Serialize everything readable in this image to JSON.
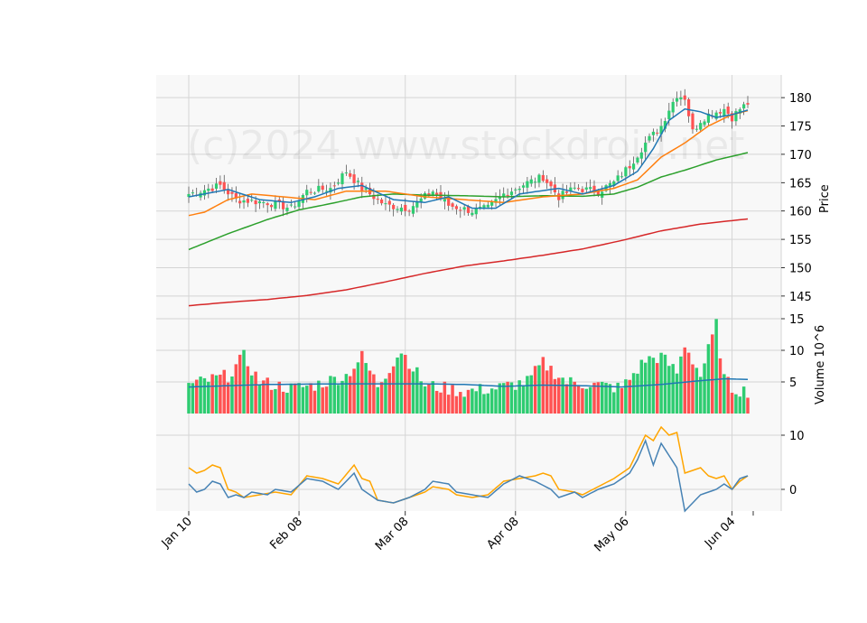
{
  "chart_data": {
    "type": "candlestick",
    "watermark": "(c)2024 www.stockdroid.net",
    "x_ticks": [
      "Jan 10",
      "Feb 08",
      "Mar 08",
      "Apr 08",
      "May 06",
      "Jun 04"
    ],
    "price_panel": {
      "ylabel": "Price",
      "ylim": [
        141,
        184
      ],
      "yticks": [
        145,
        150,
        155,
        160,
        165,
        170,
        175,
        180
      ],
      "candles_anchor_close": [
        [
          0,
          163
        ],
        [
          8,
          164.5
        ],
        [
          12,
          162
        ],
        [
          20,
          161.5
        ],
        [
          26,
          160.5
        ],
        [
          30,
          163.5
        ],
        [
          36,
          164
        ],
        [
          40,
          167
        ],
        [
          44,
          164
        ],
        [
          50,
          161
        ],
        [
          56,
          160.5
        ],
        [
          62,
          163.5
        ],
        [
          66,
          161
        ],
        [
          72,
          160
        ],
        [
          76,
          160.5
        ],
        [
          80,
          163
        ],
        [
          86,
          165
        ],
        [
          90,
          166
        ],
        [
          94,
          162.5
        ],
        [
          98,
          164
        ],
        [
          104,
          163.5
        ],
        [
          108,
          165
        ],
        [
          112,
          168
        ],
        [
          116,
          172
        ],
        [
          120,
          175
        ],
        [
          122,
          178
        ],
        [
          124,
          180.5
        ],
        [
          126,
          180
        ],
        [
          128,
          174
        ],
        [
          130,
          176
        ],
        [
          132,
          177
        ],
        [
          134,
          177.5
        ],
        [
          136,
          178
        ],
        [
          138,
          176.5
        ],
        [
          140,
          178
        ],
        [
          142,
          179
        ]
      ],
      "ma_short_anchors": [
        [
          0,
          162.5
        ],
        [
          10,
          163.8
        ],
        [
          18,
          162
        ],
        [
          26,
          161.5
        ],
        [
          32,
          162.5
        ],
        [
          38,
          164
        ],
        [
          44,
          164.5
        ],
        [
          52,
          162
        ],
        [
          60,
          161.5
        ],
        [
          66,
          162.5
        ],
        [
          72,
          160.5
        ],
        [
          78,
          160.5
        ],
        [
          84,
          163
        ],
        [
          94,
          164
        ],
        [
          100,
          163
        ],
        [
          108,
          164.5
        ],
        [
          114,
          167
        ],
        [
          118,
          171
        ],
        [
          122,
          176
        ],
        [
          126,
          178
        ],
        [
          130,
          177.5
        ],
        [
          134,
          176.5
        ],
        [
          138,
          177
        ],
        [
          142,
          177.8
        ]
      ],
      "ma_mid_anchors": [
        [
          0,
          159.2
        ],
        [
          4,
          159.8
        ],
        [
          10,
          162
        ],
        [
          16,
          163
        ],
        [
          24,
          162.5
        ],
        [
          32,
          162
        ],
        [
          40,
          163.5
        ],
        [
          50,
          163.5
        ],
        [
          60,
          162.5
        ],
        [
          70,
          162
        ],
        [
          80,
          161.5
        ],
        [
          90,
          162.5
        ],
        [
          100,
          163
        ],
        [
          108,
          164
        ],
        [
          114,
          165.5
        ],
        [
          120,
          169.5
        ],
        [
          126,
          172
        ],
        [
          132,
          175
        ],
        [
          138,
          177
        ],
        [
          142,
          177.7
        ]
      ],
      "ma_long_anchors": [
        [
          0,
          153.2
        ],
        [
          10,
          156
        ],
        [
          20,
          158.5
        ],
        [
          28,
          160.2
        ],
        [
          36,
          161.3
        ],
        [
          44,
          162.5
        ],
        [
          52,
          163
        ],
        [
          60,
          162.8
        ],
        [
          70,
          162.7
        ],
        [
          80,
          162.5
        ],
        [
          90,
          162.7
        ],
        [
          100,
          162.6
        ],
        [
          108,
          163
        ],
        [
          114,
          164.2
        ],
        [
          120,
          166
        ],
        [
          126,
          167.2
        ],
        [
          134,
          169
        ],
        [
          142,
          170.3
        ]
      ],
      "ma_200_anchors": [
        [
          0,
          143.3
        ],
        [
          10,
          143.9
        ],
        [
          20,
          144.4
        ],
        [
          30,
          145.1
        ],
        [
          40,
          146.1
        ],
        [
          50,
          147.5
        ],
        [
          60,
          149
        ],
        [
          70,
          150.3
        ],
        [
          80,
          151.2
        ],
        [
          90,
          152.2
        ],
        [
          100,
          153.3
        ],
        [
          110,
          154.8
        ],
        [
          120,
          156.5
        ],
        [
          130,
          157.7
        ],
        [
          142,
          158.6
        ]
      ]
    },
    "volume_panel": {
      "ylabel": "Volume  10^6",
      "ylim": [
        0,
        15
      ],
      "yticks": [
        5,
        10,
        15
      ],
      "volume_anchors": [
        [
          0,
          4.5
        ],
        [
          10,
          6
        ],
        [
          14,
          9
        ],
        [
          18,
          5
        ],
        [
          26,
          4
        ],
        [
          32,
          4.5
        ],
        [
          40,
          6
        ],
        [
          44,
          9
        ],
        [
          48,
          4.5
        ],
        [
          54,
          10
        ],
        [
          60,
          4.5
        ],
        [
          70,
          3.5
        ],
        [
          78,
          4
        ],
        [
          86,
          5
        ],
        [
          90,
          8
        ],
        [
          96,
          5
        ],
        [
          104,
          4.5
        ],
        [
          110,
          4
        ],
        [
          116,
          8.5
        ],
        [
          120,
          9
        ],
        [
          124,
          6.5
        ],
        [
          126,
          11
        ],
        [
          130,
          6
        ],
        [
          134,
          14
        ],
        [
          136,
          5.5
        ],
        [
          138,
          4
        ],
        [
          142,
          3.5
        ]
      ],
      "vol_ma_anchors": [
        [
          0,
          4.2
        ],
        [
          20,
          4.6
        ],
        [
          40,
          4.7
        ],
        [
          60,
          4.7
        ],
        [
          70,
          4.6
        ],
        [
          80,
          4.3
        ],
        [
          90,
          4.5
        ],
        [
          100,
          4.4
        ],
        [
          110,
          4.2
        ],
        [
          120,
          4.6
        ],
        [
          130,
          5.2
        ],
        [
          136,
          5.5
        ],
        [
          142,
          5.4
        ]
      ]
    },
    "indicator_panel": {
      "ylim": [
        -4,
        14
      ],
      "yticks": [
        0,
        10
      ],
      "blue_anchors": [
        [
          0,
          1
        ],
        [
          2,
          -0.5
        ],
        [
          4,
          0
        ],
        [
          6,
          1.5
        ],
        [
          8,
          1
        ],
        [
          10,
          -1.5
        ],
        [
          12,
          -1
        ],
        [
          14,
          -1.5
        ],
        [
          16,
          -0.5
        ],
        [
          20,
          -1
        ],
        [
          22,
          0
        ],
        [
          26,
          -0.5
        ],
        [
          30,
          2
        ],
        [
          34,
          1.5
        ],
        [
          38,
          0
        ],
        [
          42,
          3
        ],
        [
          44,
          0
        ],
        [
          46,
          -1
        ],
        [
          48,
          -2
        ],
        [
          52,
          -2.5
        ],
        [
          56,
          -1.5
        ],
        [
          60,
          0
        ],
        [
          62,
          1.5
        ],
        [
          66,
          1
        ],
        [
          68,
          -0.5
        ],
        [
          72,
          -1
        ],
        [
          76,
          -1.5
        ],
        [
          80,
          1
        ],
        [
          84,
          2.5
        ],
        [
          88,
          1.5
        ],
        [
          92,
          0
        ],
        [
          94,
          -1.5
        ],
        [
          98,
          -0.5
        ],
        [
          100,
          -1.5
        ],
        [
          104,
          0
        ],
        [
          108,
          1
        ],
        [
          112,
          3
        ],
        [
          114,
          5.5
        ],
        [
          116,
          9
        ],
        [
          118,
          4.5
        ],
        [
          120,
          8.5
        ],
        [
          124,
          4
        ],
        [
          126,
          -4
        ],
        [
          128,
          -2.5
        ],
        [
          130,
          -1
        ],
        [
          132,
          -0.5
        ],
        [
          134,
          0
        ],
        [
          136,
          1
        ],
        [
          138,
          0
        ],
        [
          140,
          2
        ],
        [
          142,
          2.5
        ]
      ],
      "orange_anchors": [
        [
          0,
          4
        ],
        [
          2,
          3
        ],
        [
          4,
          3.5
        ],
        [
          6,
          4.5
        ],
        [
          8,
          4
        ],
        [
          10,
          0
        ],
        [
          12,
          -0.5
        ],
        [
          14,
          -1.5
        ],
        [
          18,
          -1
        ],
        [
          22,
          -0.5
        ],
        [
          26,
          -1
        ],
        [
          30,
          2.5
        ],
        [
          34,
          2
        ],
        [
          38,
          1
        ],
        [
          42,
          4.5
        ],
        [
          44,
          2
        ],
        [
          46,
          1.5
        ],
        [
          48,
          -2
        ],
        [
          52,
          -2.5
        ],
        [
          56,
          -1.5
        ],
        [
          60,
          -0.5
        ],
        [
          62,
          0.5
        ],
        [
          66,
          0
        ],
        [
          68,
          -1
        ],
        [
          72,
          -1.5
        ],
        [
          76,
          -1
        ],
        [
          80,
          1.5
        ],
        [
          84,
          2
        ],
        [
          88,
          2.5
        ],
        [
          90,
          3
        ],
        [
          92,
          2.5
        ],
        [
          94,
          0
        ],
        [
          98,
          -0.5
        ],
        [
          100,
          -1
        ],
        [
          104,
          0.5
        ],
        [
          108,
          2
        ],
        [
          112,
          4
        ],
        [
          114,
          7
        ],
        [
          116,
          10
        ],
        [
          118,
          9
        ],
        [
          120,
          11.5
        ],
        [
          122,
          10
        ],
        [
          124,
          10.5
        ],
        [
          126,
          3
        ],
        [
          128,
          3.5
        ],
        [
          130,
          4
        ],
        [
          132,
          2.5
        ],
        [
          134,
          2
        ],
        [
          136,
          2.5
        ],
        [
          138,
          0
        ],
        [
          140,
          1.5
        ],
        [
          142,
          2.5
        ]
      ]
    },
    "colors": {
      "up": "#2ecc71",
      "down": "#ff5252",
      "ma_short": "#1f77b4",
      "ma_mid": "#ff7f0e",
      "ma_long": "#2ca02c",
      "ma_200": "#d62728",
      "vol_ma": "#1f77b4",
      "ind_blue": "#4682b4",
      "ind_orange": "#ffa500",
      "panel_bg": "#f8f8f8",
      "grid": "#d5d5d5"
    }
  }
}
